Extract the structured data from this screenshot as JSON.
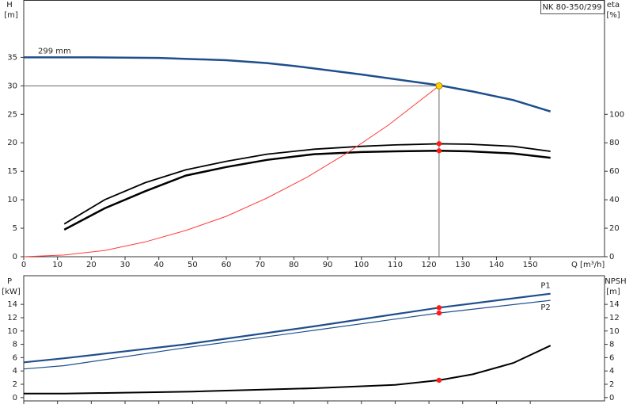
{
  "chart_data": [
    {
      "type": "line",
      "title": "NK 80-350/299",
      "ylabel": "H",
      "yunit": "[m]",
      "y2label": "eta",
      "y2unit": "[%]",
      "xlabel": "Q [m³/h]",
      "xlim": [
        0,
        172
      ],
      "xticks": [
        0,
        10,
        20,
        30,
        40,
        50,
        60,
        70,
        80,
        90,
        100,
        110,
        120,
        130,
        140,
        150
      ],
      "ylim": [
        0,
        45
      ],
      "yticks": [
        0,
        5,
        10,
        15,
        20,
        25,
        30,
        35
      ],
      "y2lim": [
        0,
        180
      ],
      "y2ticks": [
        0,
        20,
        40,
        60,
        80,
        100
      ],
      "series": [
        {
          "name": "299 mm",
          "label_at": "start",
          "color": "#1f4e8c",
          "width": 2.5,
          "x": [
            0,
            20,
            40,
            60,
            72,
            80,
            100,
            123,
            133,
            145,
            156
          ],
          "values": [
            35,
            35,
            34.9,
            34.5,
            34,
            33.5,
            32,
            30.1,
            29,
            27.5,
            25.5
          ]
        },
        {
          "color": "#000000",
          "width": 1.8,
          "axis": "y2",
          "x": [
            12,
            24,
            36,
            48,
            60,
            72,
            86,
            100,
            110,
            123,
            132,
            145,
            156
          ],
          "values": [
            23,
            40,
            52,
            61,
            67,
            72,
            75.5,
            77.5,
            78.5,
            79.3,
            79,
            77.5,
            74
          ]
        },
        {
          "color": "#000000",
          "width": 2.5,
          "axis": "y2",
          "x": [
            12,
            24,
            36,
            48,
            60,
            72,
            86,
            100,
            110,
            123,
            132,
            145,
            156
          ],
          "values": [
            19,
            34,
            46,
            57,
            63,
            68,
            72,
            73.5,
            74,
            74.4,
            74,
            72.5,
            69.5
          ]
        },
        {
          "color": "#ff3b3b",
          "width": 1,
          "x": [
            0,
            12,
            24,
            36,
            48,
            60,
            72,
            84,
            96,
            108,
            123
          ],
          "values": [
            0,
            0.29,
            1.1,
            2.6,
            4.6,
            7.1,
            10.3,
            14,
            18.3,
            23.1,
            30
          ]
        }
      ],
      "markers": [
        {
          "x": 123,
          "y": 30,
          "color": "#ffd200",
          "guides": true
        },
        {
          "x": 123,
          "y": 79.4,
          "color": "#ff1a1a",
          "axis": "y2"
        },
        {
          "x": 123,
          "y": 74.4,
          "color": "#ff1a1a",
          "axis": "y2"
        }
      ]
    },
    {
      "type": "line",
      "ylabel": "P",
      "yunit": "[kW]",
      "y2label": "NPSH",
      "y2unit": "[m]",
      "xlim": [
        0,
        172
      ],
      "xticks": [
        0,
        10,
        20,
        30,
        40,
        50,
        60,
        70,
        80,
        90,
        100,
        110,
        120,
        130,
        140,
        150
      ],
      "show_xtick_labels": false,
      "ylim": [
        -0.5,
        18.3
      ],
      "yticks": [
        0,
        2,
        4,
        6,
        8,
        10,
        12,
        14
      ],
      "y2lim": [
        -0.5,
        18.3
      ],
      "y2ticks": [
        0,
        2,
        4,
        6,
        8,
        10,
        12,
        14
      ],
      "series": [
        {
          "name": "P1",
          "label_at": "end",
          "color": "#1f4e8c",
          "width": 2.2,
          "x": [
            0,
            12,
            48,
            86,
            123,
            156
          ],
          "values": [
            5.3,
            5.9,
            8.0,
            10.7,
            13.5,
            15.6
          ]
        },
        {
          "name": "P2",
          "label_at": "end-below",
          "color": "#1f4e8c",
          "width": 1.2,
          "x": [
            0,
            12,
            48,
            86,
            123,
            156
          ],
          "values": [
            4.3,
            4.8,
            7.5,
            10.1,
            12.7,
            14.6
          ]
        },
        {
          "color": "#000000",
          "width": 2,
          "axis": "y2",
          "x": [
            0,
            12,
            50,
            86,
            110,
            123,
            133,
            145,
            156
          ],
          "values": [
            0.6,
            0.6,
            0.9,
            1.4,
            1.9,
            2.6,
            3.5,
            5.2,
            7.8
          ]
        }
      ],
      "markers": [
        {
          "x": 123,
          "y": 13.5,
          "color": "#ff1a1a"
        },
        {
          "x": 123,
          "y": 12.7,
          "color": "#ff1a1a"
        },
        {
          "x": 123,
          "y": 2.6,
          "color": "#ff1a1a",
          "axis": "y2"
        }
      ]
    }
  ]
}
